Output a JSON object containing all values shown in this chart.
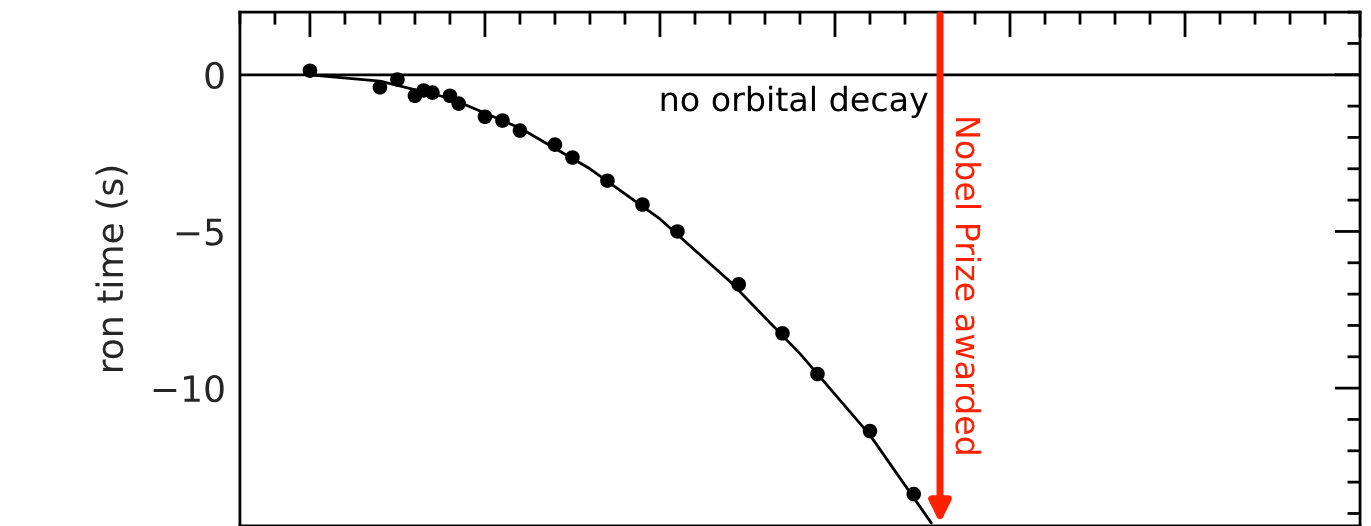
{
  "chart_data": {
    "type": "scatter",
    "ylabel": "ron time (s)",
    "categories": [
      null,
      null,
      null,
      null,
      null,
      null,
      null,
      null,
      null,
      null,
      null,
      null,
      null,
      null,
      null,
      null,
      null,
      null,
      null,
      null,
      null,
      null,
      null,
      null,
      null,
      null,
      null,
      null,
      null,
      null,
      null,
      null,
      null,
      null,
      null,
      null,
      null,
      null,
      null,
      null,
      null,
      null,
      null,
      null,
      null,
      null,
      null,
      null,
      null,
      null,
      null,
      null,
      null,
      null,
      null,
      null,
      null,
      null,
      null,
      null,
      null,
      null,
      null,
      null,
      null,
      null,
      null,
      null,
      null,
      null,
      null,
      null,
      null,
      null,
      null,
      null,
      null,
      null,
      null,
      null,
      null,
      null,
      null,
      null,
      null,
      null,
      null,
      null,
      null,
      null,
      null,
      null,
      null,
      null,
      null,
      null,
      null,
      null,
      null,
      null,
      null,
      null,
      null,
      null,
      null,
      null,
      null,
      null,
      null,
      null,
      null,
      null,
      null,
      null,
      null,
      null,
      null,
      null,
      null,
      null,
      null,
      null,
      null,
      null,
      null,
      null,
      null,
      null,
      null
    ],
    "ylim": [
      -14.4,
      2
    ],
    "yticks": [
      {
        "value": -10,
        "label": "−10"
      },
      {
        "value": -5,
        "label": "−5"
      },
      0
    ],
    "tick_labels": "y",
    "grid": false,
    "annotations": [
      "Nobel Prize awarded"
    ],
    "series": [
      {
        "color": "#000000",
        "marker": "circle",
        "values": [
          null,
          null,
          null,
          null,
          null,
          null,
          null,
          null,
          0.13,
          null,
          null,
          null,
          null,
          null,
          null,
          null,
          -0.4,
          null,
          -0.15,
          null,
          -0.67,
          -0.5,
          -0.57,
          null,
          -0.67,
          -0.92,
          null,
          null,
          -1.34,
          null,
          -1.46,
          null,
          -1.78,
          null,
          null,
          null,
          -2.23,
          null,
          -2.64,
          null,
          null,
          null,
          -3.38,
          null,
          null,
          null,
          -4.14,
          null,
          null,
          null,
          -5.0,
          null,
          null,
          null,
          null,
          null,
          null,
          -6.69,
          null,
          null,
          null,
          null,
          -8.25,
          null,
          null,
          null,
          -9.55,
          null,
          null,
          null,
          null,
          null,
          -11.37,
          null,
          null,
          null,
          null,
          -13.38,
          null,
          null,
          null,
          null,
          null,
          null,
          null,
          null,
          null,
          null,
          null,
          null,
          null,
          null,
          null,
          null,
          null,
          null,
          null,
          null,
          null,
          null,
          null,
          null,
          null,
          null,
          null,
          null,
          null,
          null,
          null,
          null,
          null,
          null,
          null,
          null,
          null,
          null,
          null,
          null,
          null,
          null,
          null,
          null,
          null,
          null,
          null,
          null,
          null,
          null,
          null
        ]
      },
      {
        "type": "line",
        "color": "#000000",
        "line_style": "solid",
        "values": [
          null,
          null,
          null,
          null,
          null,
          null,
          null,
          null,
          0,
          null,
          null,
          null,
          null,
          null,
          null,
          null,
          -0.2,
          null,
          null,
          null,
          null,
          null,
          null,
          null,
          -0.75,
          null,
          null,
          null,
          null,
          null,
          null,
          null,
          -1.7,
          null,
          null,
          null,
          null,
          null,
          null,
          null,
          -3.0,
          null,
          null,
          null,
          null,
          null,
          null,
          null,
          -4.6,
          null,
          null,
          null,
          null,
          null,
          null,
          null,
          -6.6,
          null,
          null,
          null,
          null,
          null,
          null,
          null,
          -8.9,
          null,
          null,
          null,
          null,
          null,
          null,
          null,
          -11.5,
          null,
          null,
          null,
          null,
          null,
          null,
          -14.3,
          null,
          null,
          null,
          null,
          null,
          null,
          null,
          null,
          null,
          null,
          null,
          null,
          null,
          null,
          null,
          null,
          null,
          null,
          null,
          null,
          null,
          null,
          null,
          null,
          null,
          null,
          null,
          null,
          null,
          null,
          null,
          null,
          null,
          null,
          null,
          null,
          null,
          null,
          null,
          null,
          null,
          null,
          null,
          null,
          null,
          null,
          null,
          null,
          null
        ]
      }
    ],
    "ref_lines": [
      {
        "axis": "y",
        "value": 0,
        "label": "no orbital decay",
        "color": "#000000",
        "line_style": "solid"
      }
    ]
  }
}
